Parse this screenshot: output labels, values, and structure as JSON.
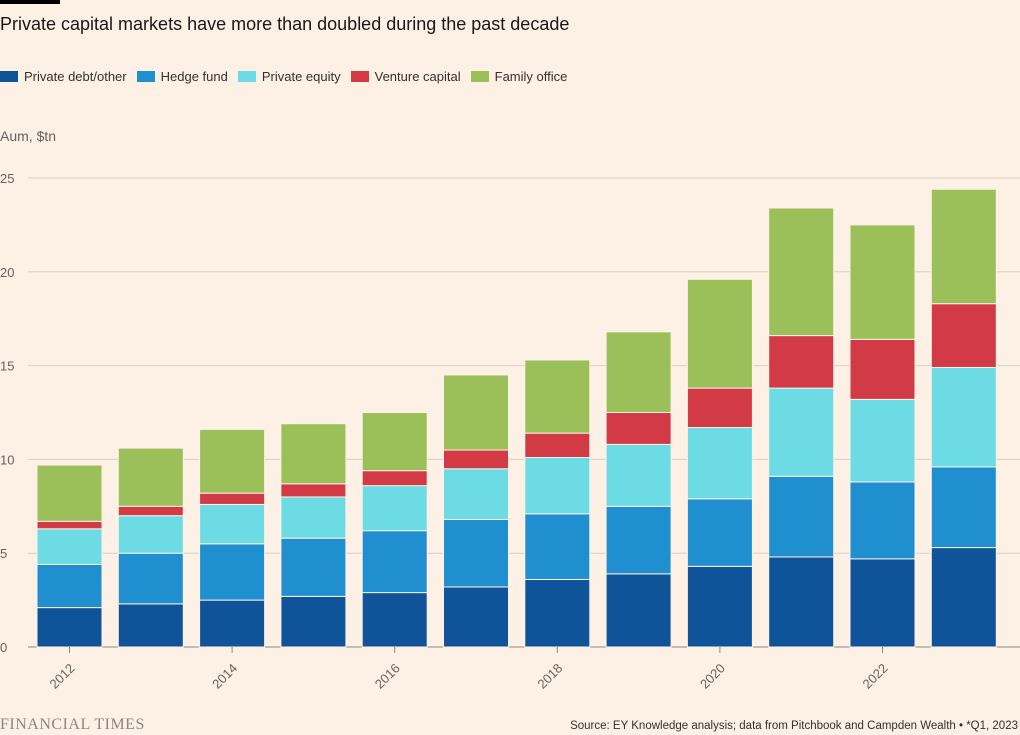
{
  "title": "Private capital markets have more than doubled during the past decade",
  "unit_label": "Aum, $tn",
  "source": "Source: EY Knowledge analysis; data from Pitchbook and Campden Wealth • *Q1, 2023",
  "brand": "FINANCIAL TIMES",
  "chart_data": {
    "type": "bar",
    "stacked": true,
    "categories": [
      "2012",
      "2013",
      "2014",
      "2015",
      "2016",
      "2017",
      "2018",
      "2019",
      "2020",
      "2021",
      "2022",
      "2023*"
    ],
    "x_tick_labels": [
      "2012",
      "2014",
      "2016",
      "2018",
      "2020",
      "2022"
    ],
    "ylim": [
      0,
      25
    ],
    "yticks": [
      0,
      5,
      10,
      15,
      20,
      25
    ],
    "ylabel": "Aum, $tn",
    "grid": true,
    "legend_position": "top-left",
    "series": [
      {
        "name": "Private debt/other",
        "color": "#0f5499",
        "values": [
          2.1,
          2.3,
          2.5,
          2.7,
          2.9,
          3.2,
          3.6,
          3.9,
          4.3,
          4.8,
          4.7,
          5.3
        ]
      },
      {
        "name": "Hedge fund",
        "color": "#1f8fd0",
        "values": [
          2.3,
          2.7,
          3.0,
          3.1,
          3.3,
          3.6,
          3.5,
          3.6,
          3.6,
          4.3,
          4.1,
          4.3
        ]
      },
      {
        "name": "Private equity",
        "color": "#6ddbe3",
        "values": [
          1.9,
          2.0,
          2.1,
          2.2,
          2.4,
          2.7,
          3.0,
          3.3,
          3.8,
          4.7,
          4.4,
          5.3
        ]
      },
      {
        "name": "Venture capital",
        "color": "#d23a46",
        "values": [
          0.4,
          0.5,
          0.6,
          0.7,
          0.8,
          1.0,
          1.3,
          1.7,
          2.1,
          2.8,
          3.2,
          3.4
        ]
      },
      {
        "name": "Family office",
        "color": "#9bbf59",
        "values": [
          3.0,
          3.1,
          3.4,
          3.2,
          3.1,
          4.0,
          3.9,
          4.3,
          5.8,
          6.8,
          6.1,
          6.1
        ]
      }
    ]
  }
}
